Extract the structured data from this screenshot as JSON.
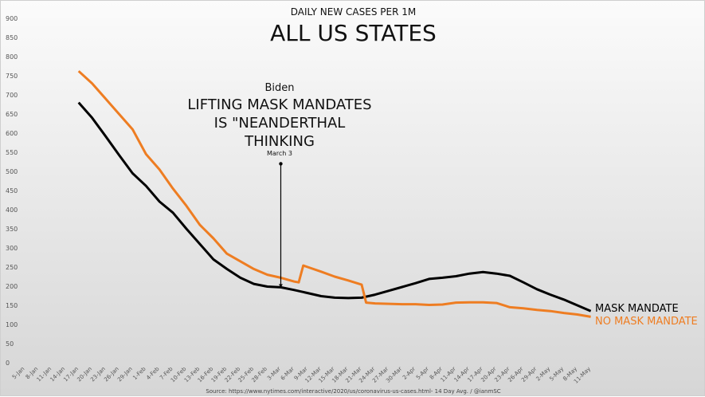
{
  "chart_data": {
    "type": "line",
    "subtitle": "DAILY NEW CASES PER 1M",
    "title": "ALL US STATES",
    "source": "Source: https://www.nytimes.com/interactive/2020/us/coronavirus-us-cases.html- 14 Day Avg. / @ianmSC",
    "ylim": [
      0,
      900
    ],
    "yticks": [
      0,
      50,
      100,
      150,
      200,
      250,
      300,
      350,
      400,
      450,
      500,
      550,
      600,
      650,
      700,
      750,
      800,
      850,
      900
    ],
    "xticks": [
      "5-Jan",
      "8-Jan",
      "11-Jan",
      "14-Jan",
      "17-Jan",
      "20-Jan",
      "23-Jan",
      "26-Jan",
      "29-Jan",
      "1-Feb",
      "4-Feb",
      "7-Feb",
      "10-Feb",
      "13-Feb",
      "16-Feb",
      "19-Feb",
      "22-Feb",
      "25-Feb",
      "28-Feb",
      "3-Mar",
      "6-Mar",
      "9-Mar",
      "12-Mar",
      "15-Mar",
      "18-Mar",
      "21-Mar",
      "24-Mar",
      "27-Mar",
      "30-Mar",
      "2-Apr",
      "5-Apr",
      "8-Apr",
      "11-Apr",
      "14-Apr",
      "17-Apr",
      "20-Apr",
      "23-Apr",
      "26-Apr",
      "29-Apr",
      "2-May",
      "5-May",
      "8-May",
      "11-May"
    ],
    "grid": false,
    "series": [
      {
        "name": "MASK MANDATE",
        "color": "#000000",
        "points": [
          [
            "17-Jan",
            680
          ],
          [
            "20-Jan",
            640
          ],
          [
            "23-Jan",
            592
          ],
          [
            "26-Jan",
            543
          ],
          [
            "29-Jan",
            495
          ],
          [
            "1-Feb",
            462
          ],
          [
            "4-Feb",
            421
          ],
          [
            "7-Feb",
            392
          ],
          [
            "10-Feb",
            350
          ],
          [
            "13-Feb",
            310
          ],
          [
            "16-Feb",
            270
          ],
          [
            "19-Feb",
            245
          ],
          [
            "22-Feb",
            222
          ],
          [
            "25-Feb",
            206
          ],
          [
            "28-Feb",
            199
          ],
          [
            "3-Mar",
            197
          ],
          [
            "6-Mar",
            190
          ],
          [
            "9-Mar",
            182
          ],
          [
            "12-Mar",
            174
          ],
          [
            "15-Mar",
            170
          ],
          [
            "18-Mar",
            169
          ],
          [
            "21-Mar",
            170
          ],
          [
            "24-Mar",
            178
          ],
          [
            "27-Mar",
            188
          ],
          [
            "30-Mar",
            198
          ],
          [
            "2-Apr",
            208
          ],
          [
            "5-Apr",
            219
          ],
          [
            "8-Apr",
            222
          ],
          [
            "11-Apr",
            226
          ],
          [
            "14-Apr",
            233
          ],
          [
            "17-Apr",
            237
          ],
          [
            "20-Apr",
            233
          ],
          [
            "23-Apr",
            227
          ],
          [
            "26-Apr",
            210
          ],
          [
            "29-Apr",
            192
          ],
          [
            "2-May",
            178
          ],
          [
            "5-May",
            165
          ],
          [
            "8-May",
            150
          ],
          [
            "11-May",
            135
          ]
        ]
      },
      {
        "name": "NO MASK MANDATE",
        "color": "#ee7d22",
        "points": [
          [
            "17-Jan",
            762
          ],
          [
            "20-Jan",
            730
          ],
          [
            "23-Jan",
            690
          ],
          [
            "26-Jan",
            650
          ],
          [
            "29-Jan",
            610
          ],
          [
            "1-Feb",
            545
          ],
          [
            "4-Feb",
            505
          ],
          [
            "7-Feb",
            455
          ],
          [
            "10-Feb",
            410
          ],
          [
            "13-Feb",
            360
          ],
          [
            "16-Feb",
            325
          ],
          [
            "19-Feb",
            285
          ],
          [
            "22-Feb",
            265
          ],
          [
            "25-Feb",
            245
          ],
          [
            "28-Feb",
            230
          ],
          [
            "3-Mar",
            222
          ],
          [
            "6-Mar",
            212
          ],
          [
            "7-Mar",
            210
          ],
          [
            "8-Mar",
            254
          ],
          [
            "9-Mar",
            250
          ],
          [
            "12-Mar",
            238
          ],
          [
            "15-Mar",
            225
          ],
          [
            "18-Mar",
            215
          ],
          [
            "21-Mar",
            204
          ],
          [
            "22-Mar",
            157
          ],
          [
            "24-Mar",
            155
          ],
          [
            "27-Mar",
            154
          ],
          [
            "30-Mar",
            153
          ],
          [
            "2-Apr",
            153
          ],
          [
            "5-Apr",
            151
          ],
          [
            "8-Apr",
            152
          ],
          [
            "11-Apr",
            157
          ],
          [
            "14-Apr",
            158
          ],
          [
            "17-Apr",
            158
          ],
          [
            "20-Apr",
            156
          ],
          [
            "23-Apr",
            145
          ],
          [
            "26-Apr",
            142
          ],
          [
            "29-Apr",
            138
          ],
          [
            "2-May",
            135
          ],
          [
            "5-May",
            130
          ],
          [
            "8-May",
            126
          ],
          [
            "11-May",
            120
          ]
        ]
      }
    ],
    "annotation": {
      "line1": "Biden",
      "line2": "LIFTING MASK MANDATES",
      "line3": "IS \"NEANDERTHAL",
      "line4": "THINKING",
      "date_label": "March 3",
      "date": "3-Mar",
      "from_value": 520,
      "to_value": 197
    }
  }
}
